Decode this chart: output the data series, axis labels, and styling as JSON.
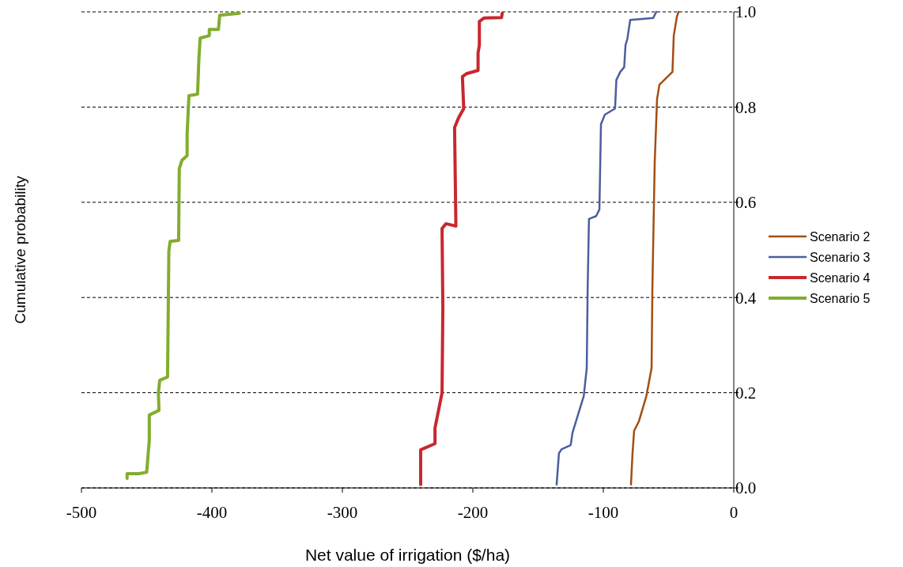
{
  "chart_data": {
    "type": "line",
    "xlabel": "Net value of irrigation  ($/ha)",
    "ylabel": "Cumulative probability",
    "xlim": [
      -500,
      0
    ],
    "xticks": [
      -500,
      -400,
      -300,
      -200,
      -100,
      0
    ],
    "ylim": [
      0,
      1
    ],
    "yticks": [
      {
        "value": 0,
        "label": "0.0"
      },
      {
        "value": 0.2,
        "label": "0.2"
      },
      {
        "value": 0.4,
        "label": "0.4"
      },
      {
        "value": 0.6,
        "label": "0.6"
      },
      {
        "value": 0.8,
        "label": "0.8"
      },
      {
        "value": 1,
        "label": "1.0"
      }
    ],
    "grid": "y",
    "legend": "right",
    "marker": "none",
    "line_style": "solid",
    "series": [
      {
        "name": "Scenario 2",
        "color": "#a34e12",
        "x": [
          -78.8,
          -77.6,
          -76.4,
          -72.7,
          -67,
          -63,
          -62.4,
          -60.6,
          -58.8,
          -57,
          -47,
          -46,
          -43.6,
          -42.4
        ],
        "values": [
          0.007,
          0.073,
          0.12,
          0.14,
          0.193,
          0.252,
          0.419,
          0.684,
          0.817,
          0.847,
          0.874,
          0.95,
          0.99,
          1.0
        ]
      },
      {
        "name": "Scenario 3",
        "color": "#4a5f9d",
        "x": [
          -135.8,
          -134,
          -132,
          -125,
          -123.6,
          -115,
          -112.7,
          -112,
          -111,
          -105.5,
          -103,
          -101.8,
          -98.8,
          -91,
          -90,
          -87,
          -84,
          -83,
          -81.6,
          -79.4,
          -61.8,
          -59.4
        ],
        "values": [
          0.007,
          0.073,
          0.081,
          0.09,
          0.116,
          0.193,
          0.252,
          0.419,
          0.565,
          0.571,
          0.585,
          0.764,
          0.784,
          0.797,
          0.857,
          0.874,
          0.884,
          0.93,
          0.943,
          0.983,
          0.987,
          1.0
        ]
      },
      {
        "name": "Scenario 4",
        "color": "#c8282e",
        "x": [
          -240,
          -240,
          -237.6,
          -229,
          -229,
          -223.6,
          -223,
          -223.6,
          -220.6,
          -213,
          -214,
          -211,
          -207,
          -208,
          -205,
          -196,
          -196,
          -195,
          -195,
          -191.5,
          -178,
          -177.5
        ],
        "values": [
          0.007,
          0.08,
          0.083,
          0.093,
          0.126,
          0.2,
          0.379,
          0.545,
          0.555,
          0.55,
          0.757,
          0.777,
          0.797,
          0.864,
          0.87,
          0.877,
          0.914,
          0.93,
          0.98,
          0.987,
          0.988,
          0.997
        ]
      },
      {
        "name": "Scenario 5",
        "color": "#82ad2e",
        "x": [
          -465,
          -465,
          -456,
          -450,
          -448,
          -448,
          -440.6,
          -441,
          -440,
          -434,
          -433,
          -432,
          -425.5,
          -425,
          -423,
          -419,
          -419,
          -417.6,
          -411,
          -410,
          -409,
          -402,
          -402,
          -395,
          -394,
          -379
        ],
        "values": [
          0.02,
          0.03,
          0.03,
          0.033,
          0.1,
          0.153,
          0.163,
          0.2,
          0.226,
          0.233,
          0.498,
          0.518,
          0.52,
          0.671,
          0.688,
          0.698,
          0.744,
          0.824,
          0.827,
          0.9,
          0.945,
          0.95,
          0.963,
          0.963,
          0.993,
          0.997
        ]
      }
    ]
  }
}
